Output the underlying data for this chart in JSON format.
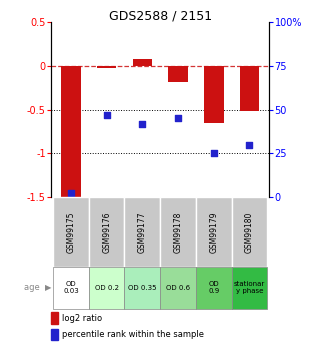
{
  "title": "GDS2588 / 2151",
  "samples": [
    "GSM99175",
    "GSM99176",
    "GSM99177",
    "GSM99178",
    "GSM99179",
    "GSM99180"
  ],
  "log2_ratio": [
    -1.55,
    -0.02,
    0.08,
    -0.18,
    -0.65,
    -0.52
  ],
  "percentile_rank": [
    2,
    47,
    42,
    45,
    25,
    30
  ],
  "ylim_left": [
    -1.5,
    0.5
  ],
  "ylim_right": [
    0,
    100
  ],
  "yticks_left": [
    -1.5,
    -1.0,
    -0.5,
    0.0,
    0.5
  ],
  "ytick_labels_left": [
    "-1.5",
    "-1",
    "-0.5",
    "0",
    "0.5"
  ],
  "yticks_right": [
    0,
    25,
    50,
    75,
    100
  ],
  "ytick_labels_right": [
    "0",
    "25",
    "50",
    "75",
    "100%"
  ],
  "bar_color": "#cc1111",
  "dot_color": "#2222cc",
  "age_labels": [
    "OD\n0.03",
    "OD 0.2",
    "OD 0.35",
    "OD 0.6",
    "OD\n0.9",
    "stationar\ny phase"
  ],
  "age_bg_colors": [
    "#ffffff",
    "#ccffcc",
    "#aaeebb",
    "#99dd99",
    "#66cc66",
    "#33bb44"
  ],
  "gsm_bg_color": "#c8c8c8",
  "legend_red_label": "log2 ratio",
  "legend_blue_label": "percentile rank within the sample"
}
